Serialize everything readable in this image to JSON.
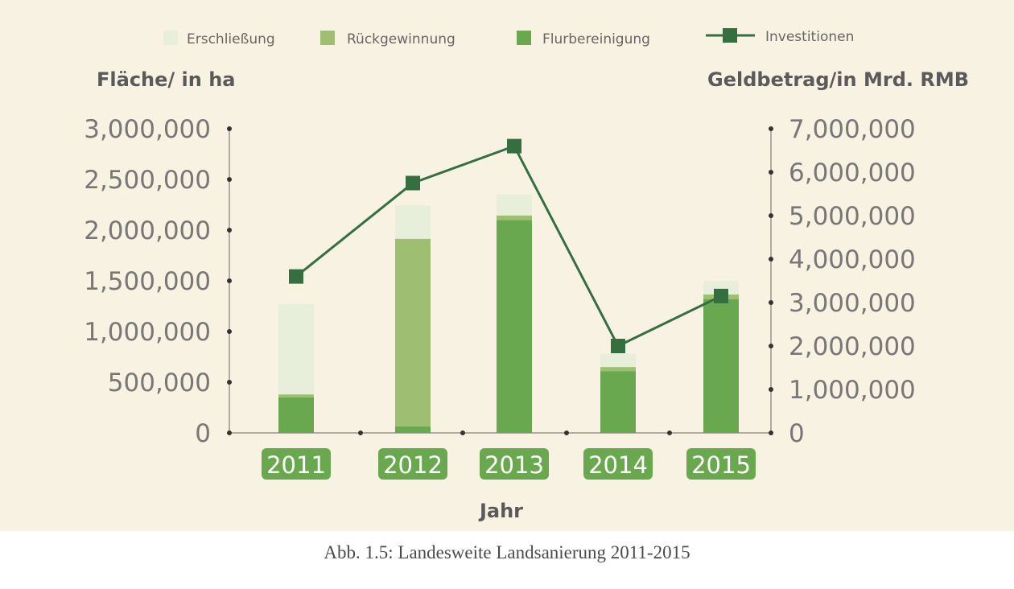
{
  "colors": {
    "background": "#f8f2e3",
    "erschliessung": "#e7efdb",
    "rueckgewinnung": "#9ebf72",
    "flurbereinigung": "#6aa84f",
    "investitionen": "#356e3f",
    "axis": "#666666",
    "year_badge": "#6aa84f"
  },
  "caption": "Abb. 1.5: Landesweite Landsanierung 2011-2015",
  "chart_data": {
    "type": "bar",
    "stacked": true,
    "categories": [
      "2011",
      "2012",
      "2013",
      "2014",
      "2015"
    ],
    "xlabel": "Jahr",
    "ylabel": "Fläche/ in ha",
    "ylabel_right": "Geldbetrag/in Mrd. RMB",
    "ylim": [
      0,
      3000000
    ],
    "ylim_right": [
      0,
      7000000
    ],
    "yticks": [
      "0",
      "500,000",
      "1,000,000",
      "1,500,000",
      "2,000,000",
      "2,500,000",
      "3,000,000"
    ],
    "yticks_right": [
      "0",
      "1,000,000",
      "2,000,000",
      "3,000,000",
      "4,000,000",
      "5,000,000",
      "6,000,000",
      "7,000,000"
    ],
    "legend": {
      "position": "top"
    },
    "series": [
      {
        "name": "Flurbereinigung",
        "type": "bar",
        "color_key": "flurbereinigung",
        "values": [
          350000,
          65000,
          2100000,
          610000,
          1320000
        ]
      },
      {
        "name": "Rückgewinnung",
        "type": "bar",
        "color_key": "rueckgewinnung",
        "values": [
          30000,
          1850000,
          45000,
          40000,
          45000
        ]
      },
      {
        "name": "Erschließung",
        "type": "bar",
        "color_key": "erschliessung",
        "values": [
          890000,
          330000,
          210000,
          130000,
          135000
        ]
      },
      {
        "name": "Investitionen",
        "type": "line",
        "axis": "right",
        "color_key": "investitionen",
        "values": [
          3600000,
          5750000,
          6600000,
          2000000,
          3150000
        ]
      }
    ],
    "legend_order": [
      "Erschließung",
      "Rückgewinnung",
      "Flurbereinigung",
      "Investitionen"
    ]
  }
}
